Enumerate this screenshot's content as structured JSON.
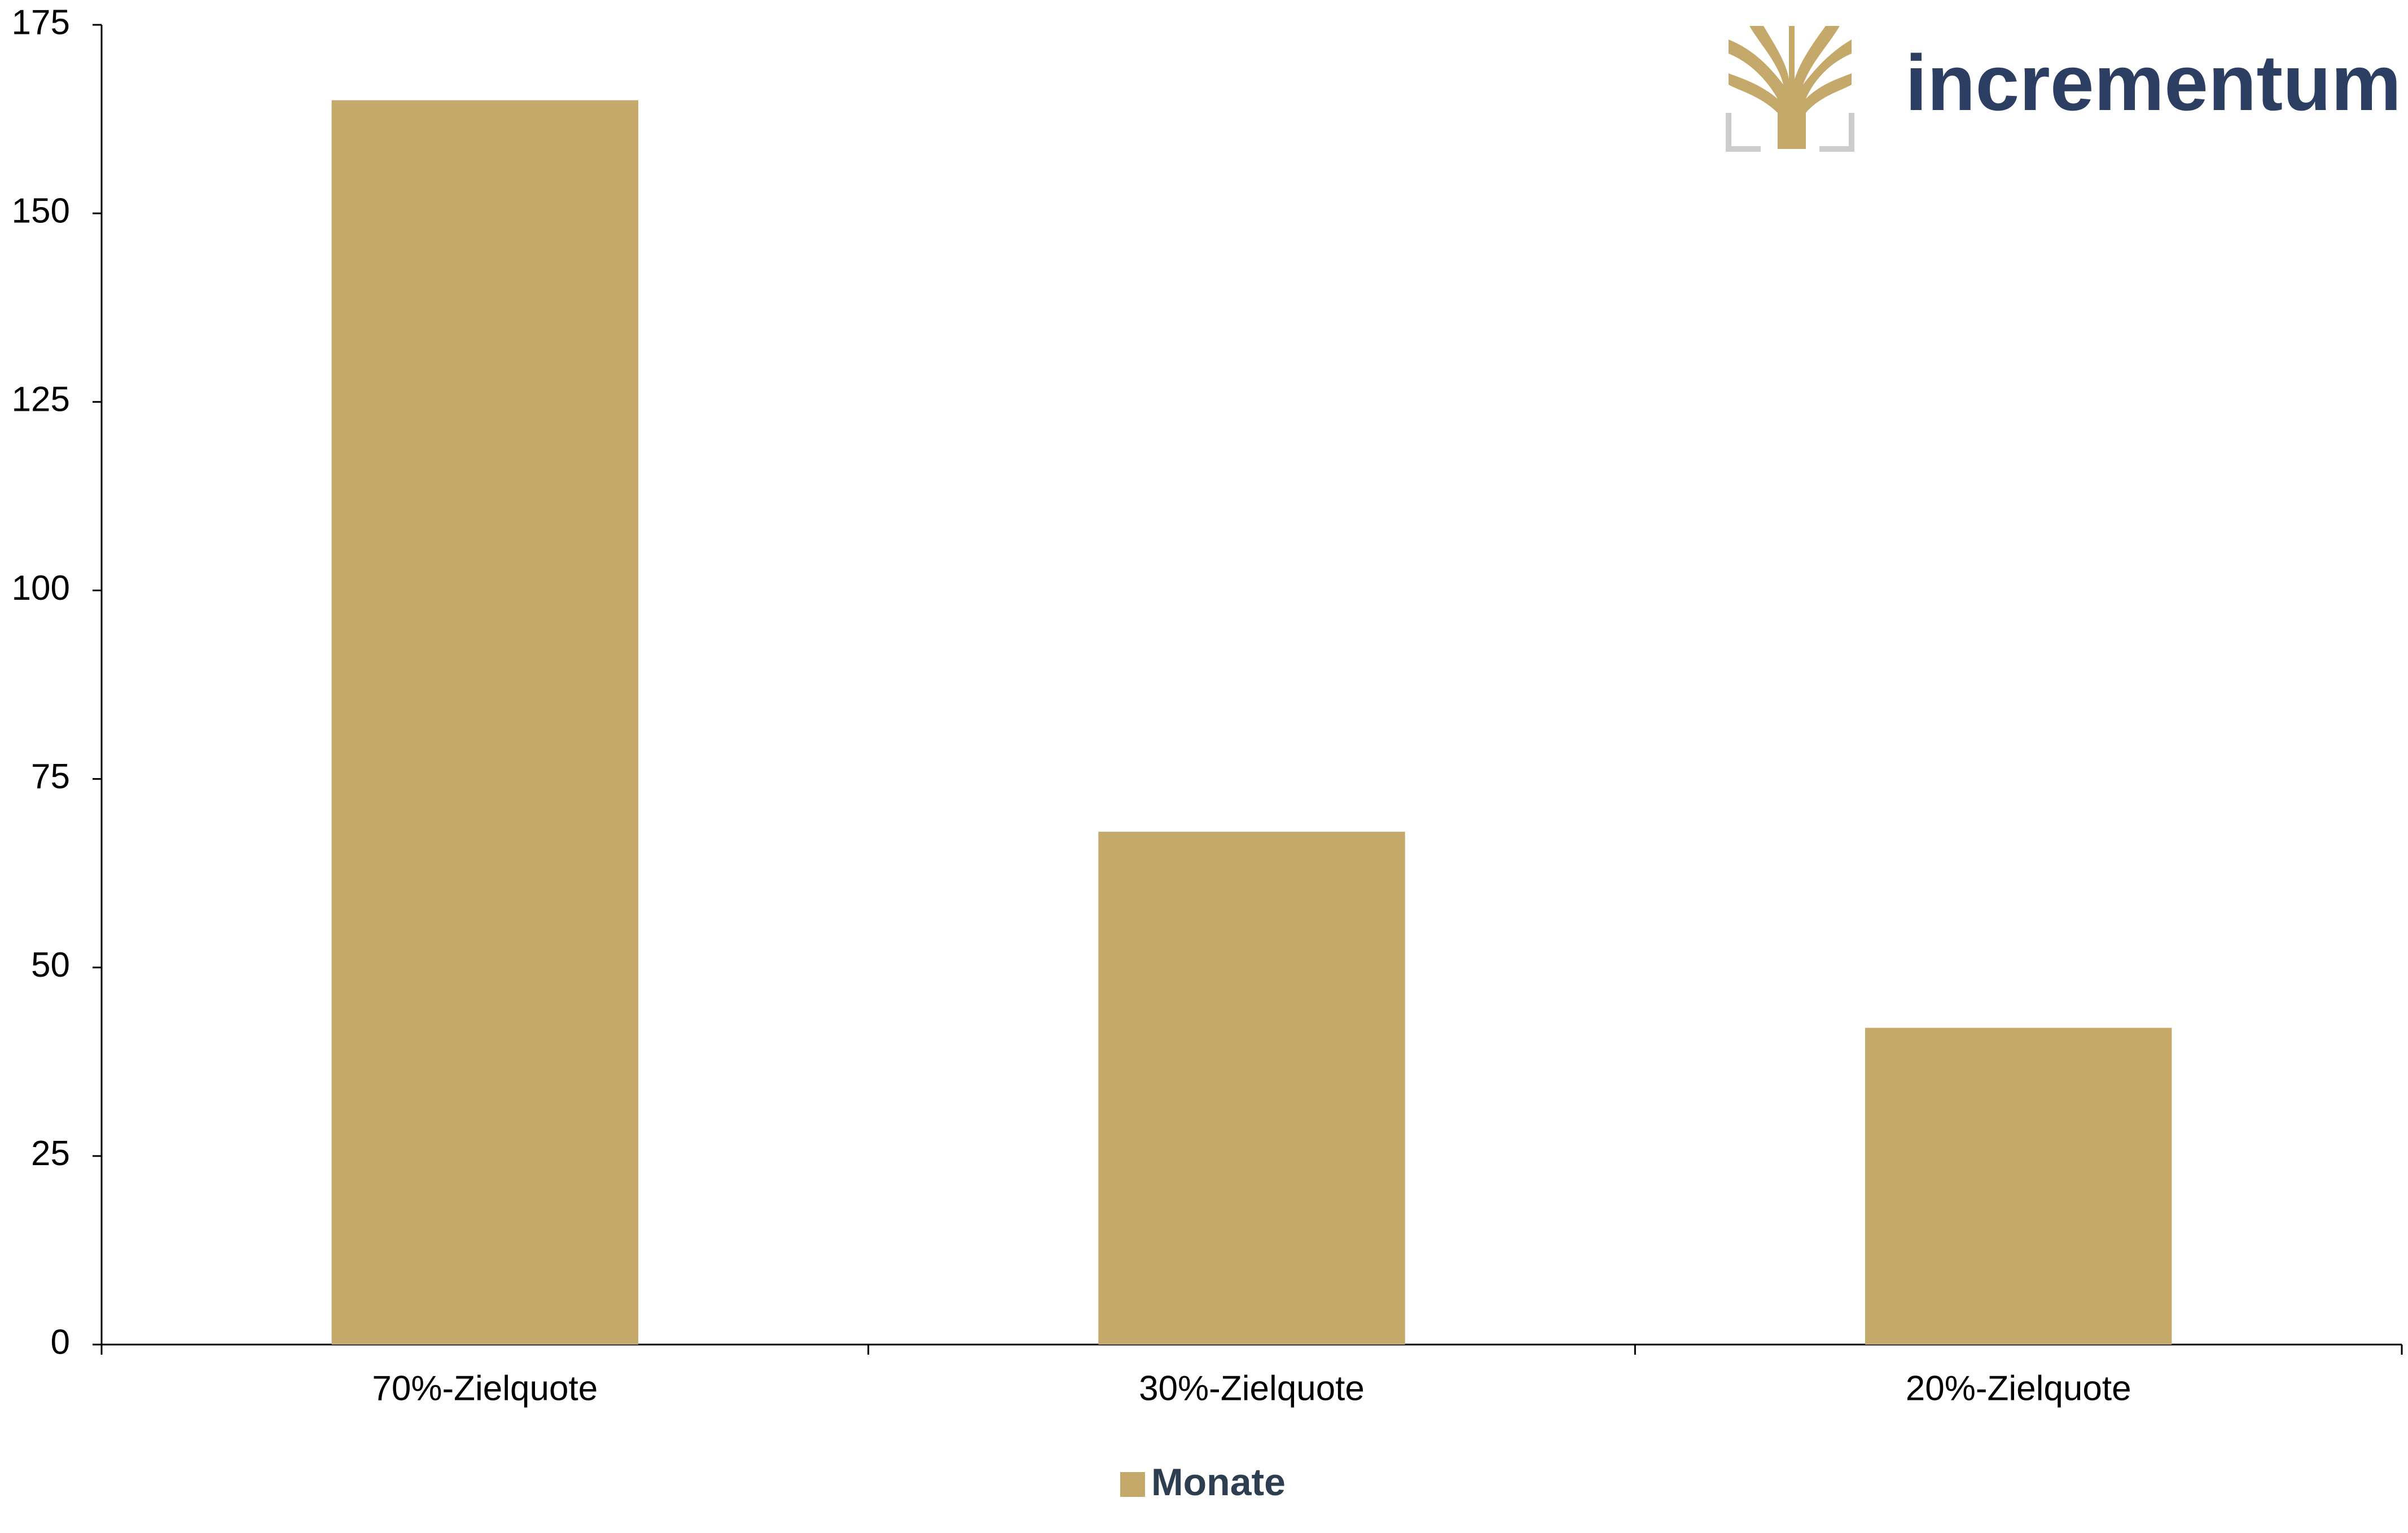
{
  "chart_data": {
    "type": "bar",
    "logo": "incrementum",
    "categories": [
      "70%-Zielquote",
      "30%-Zielquote",
      "20%-Zielquote"
    ],
    "series": [
      {
        "name": "Monate",
        "color": "#c4a96b",
        "values": [
          165,
          68,
          42
        ]
      }
    ],
    "ylim": [
      0,
      175
    ],
    "yticks": [
      0,
      25,
      50,
      75,
      100,
      125,
      150,
      175
    ],
    "grid": false
  }
}
